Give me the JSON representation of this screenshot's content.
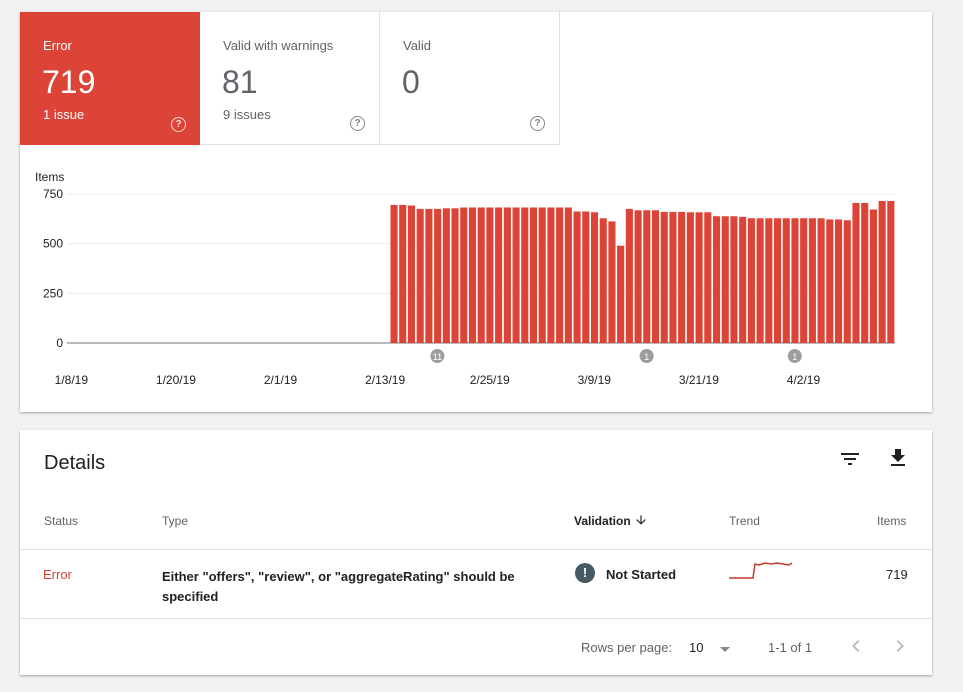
{
  "summary": {
    "tiles": [
      {
        "label": "Error",
        "count": "719",
        "sub": "1 issue"
      },
      {
        "label": "Valid with warnings",
        "count": "81",
        "sub": "9 issues"
      },
      {
        "label": "Valid",
        "count": "0",
        "sub": ""
      }
    ]
  },
  "chart_data": {
    "type": "bar",
    "ylabel": "Items",
    "y_ticks": [
      0,
      250,
      500,
      750
    ],
    "ylim": [
      0,
      750
    ],
    "x_tick_labels": [
      "1/8/19",
      "1/20/19",
      "2/1/19",
      "2/13/19",
      "2/25/19",
      "3/9/19",
      "3/21/19",
      "4/2/19"
    ],
    "start_date": "1/8/19",
    "values": [
      0,
      0,
      0,
      0,
      0,
      0,
      0,
      0,
      0,
      0,
      0,
      0,
      0,
      0,
      0,
      0,
      0,
      0,
      0,
      0,
      0,
      0,
      0,
      0,
      0,
      0,
      0,
      0,
      0,
      0,
      0,
      0,
      0,
      0,
      0,
      0,
      0,
      695,
      695,
      692,
      675,
      675,
      675,
      678,
      678,
      682,
      682,
      682,
      682,
      682,
      682,
      682,
      682,
      682,
      682,
      682,
      682,
      682,
      662,
      662,
      658,
      628,
      612,
      490,
      675,
      668,
      668,
      668,
      660,
      660,
      660,
      658,
      658,
      658,
      638,
      638,
      638,
      635,
      628,
      628,
      628,
      628,
      628,
      628,
      628,
      628,
      628,
      622,
      622,
      618,
      705,
      705,
      672,
      715,
      715
    ],
    "color": "#db4437",
    "annotations": [
      {
        "label": "11",
        "date": "2/19/19"
      },
      {
        "label": "1",
        "date": "3/15/19"
      },
      {
        "label": "1",
        "date": "4/1/19"
      }
    ]
  },
  "details": {
    "title": "Details",
    "columns": {
      "status": "Status",
      "type": "Type",
      "validation": "Validation",
      "trend": "Trend",
      "items": "Items"
    },
    "rows": [
      {
        "status": "Error",
        "type_line1": "Either \"offers\", \"review\", or \"aggregateRating\" should be",
        "type_line2": "specified",
        "validation": "Not Started",
        "items": "719"
      }
    ],
    "pager": {
      "rows_per_page_label": "Rows per page:",
      "rows_per_page_value": "10",
      "range": "1-1 of 1"
    }
  },
  "icons": {
    "filter": "filter-icon",
    "download": "download-icon",
    "help": "help-circle-icon",
    "sort": "arrow-down-icon",
    "validation": "exclamation-circle-icon",
    "prev": "chevron-left-icon",
    "next": "chevron-right-icon",
    "dropdown": "dropdown-arrow-icon"
  },
  "colors": {
    "error": "#db4437",
    "text_secondary": "#5f6368",
    "annotation": "#9e9e9e",
    "validation_icon": "#455a64"
  }
}
